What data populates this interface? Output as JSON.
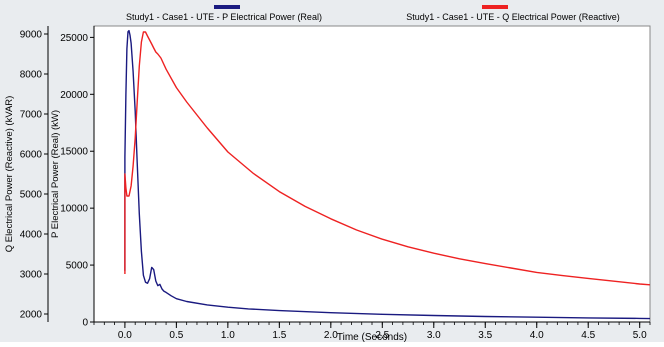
{
  "chart_data": {
    "type": "line",
    "xlabel": "Time (Seconds)",
    "xlim": [
      -0.3,
      5.1
    ],
    "x_ticks": [
      "0.0",
      "0.5",
      "1.0",
      "1.5",
      "2.0",
      "2.5",
      "3.0",
      "3.5",
      "4.0",
      "4.5",
      "5.0"
    ],
    "y_left_outer": {
      "label": "Q Electrical Power (Reactive) (kVAR)",
      "lim": [
        1800,
        9200
      ],
      "ticks": [
        "2000",
        "3000",
        "4000",
        "5000",
        "6000",
        "7000",
        "8000",
        "9000"
      ]
    },
    "y_left_inner": {
      "label": "P Electrical Power (Real) (kW)",
      "lim": [
        0,
        26000
      ],
      "ticks": [
        "0",
        "5000",
        "10000",
        "15000",
        "20000",
        "25000"
      ]
    },
    "legend_position": "top",
    "grid": false,
    "series": [
      {
        "name": "Study1 - Case1 - UTE - P Electrical Power (Real)",
        "color": "#1a1a80",
        "axis": "y_left_inner",
        "x": [
          0.0,
          0.0,
          0.01,
          0.02,
          0.03,
          0.04,
          0.05,
          0.06,
          0.08,
          0.1,
          0.12,
          0.14,
          0.16,
          0.18,
          0.2,
          0.22,
          0.24,
          0.26,
          0.28,
          0.3,
          0.32,
          0.34,
          0.36,
          0.38,
          0.4,
          0.45,
          0.5,
          0.6,
          0.8,
          1.0,
          1.2,
          1.5,
          2.0,
          2.5,
          3.0,
          3.5,
          4.0,
          4.5,
          5.0,
          5.1
        ],
        "y": [
          4500,
          14500,
          20000,
          24000,
          25500,
          25600,
          25200,
          24500,
          22000,
          18500,
          14000,
          9500,
          6200,
          4100,
          3500,
          3400,
          3800,
          4800,
          4600,
          3600,
          3200,
          3300,
          2900,
          2700,
          2600,
          2300,
          2050,
          1800,
          1500,
          1300,
          1150,
          1000,
          820,
          680,
          570,
          480,
          420,
          360,
          320,
          300
        ]
      },
      {
        "name": "Study1 - Case1 - UTE - Q Electrical Power (Reactive)",
        "color": "#ee2222",
        "axis": "y_left_outer",
        "x": [
          0.0,
          0.0,
          0.01,
          0.02,
          0.04,
          0.06,
          0.08,
          0.1,
          0.12,
          0.14,
          0.16,
          0.18,
          0.2,
          0.22,
          0.24,
          0.26,
          0.28,
          0.3,
          0.32,
          0.35,
          0.4,
          0.5,
          0.6,
          0.8,
          1.0,
          1.25,
          1.5,
          1.75,
          2.0,
          2.25,
          2.5,
          2.75,
          3.0,
          3.25,
          3.5,
          3.75,
          4.0,
          4.25,
          4.5,
          4.75,
          5.0,
          5.1
        ],
        "y": [
          3000,
          5500,
          5150,
          4950,
          4950,
          5200,
          5700,
          6400,
          7300,
          8200,
          8800,
          9050,
          9050,
          8950,
          8850,
          8750,
          8650,
          8550,
          8500,
          8400,
          8120,
          7660,
          7300,
          6650,
          6050,
          5510,
          5060,
          4690,
          4380,
          4100,
          3870,
          3680,
          3520,
          3380,
          3260,
          3150,
          3040,
          2960,
          2890,
          2820,
          2750,
          2730
        ]
      }
    ]
  }
}
